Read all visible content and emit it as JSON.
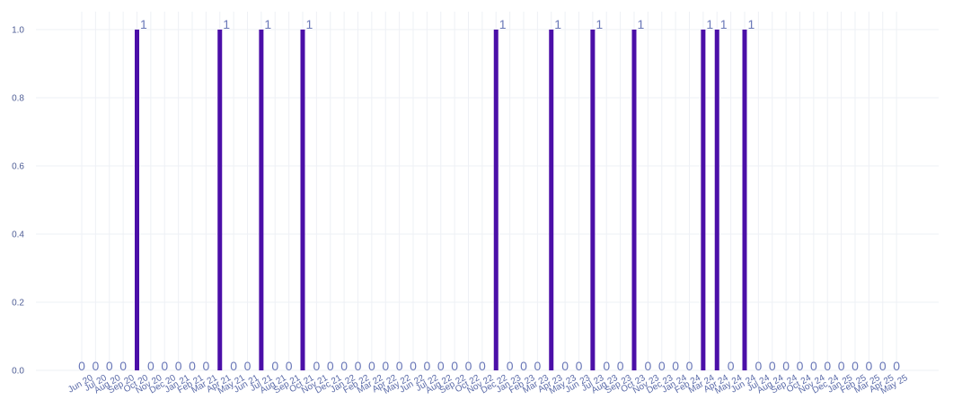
{
  "chart_data": {
    "type": "bar",
    "title": "",
    "xlabel": "",
    "ylabel": "",
    "ylim": [
      0,
      1
    ],
    "yticks": [
      "0.0",
      "0.2",
      "0.4",
      "0.6",
      "0.8",
      "1.0"
    ],
    "grid": true,
    "legend": "none",
    "bar_color": "#4b0fa8",
    "label_color": "#6a78b8",
    "categories": [
      "Jun 20",
      "Jul 20",
      "Aug 20",
      "Sep 20",
      "Oct 20",
      "Nov 20",
      "Dec 20",
      "Jan 21",
      "Feb 21",
      "Mar 21",
      "Apr 21",
      "May 21",
      "Jun 21",
      "Jul 21",
      "Aug 21",
      "Sep 21",
      "Oct 21",
      "Nov 21",
      "Dec 21",
      "Jan 22",
      "Feb 22",
      "Mar 22",
      "Apr 22",
      "May 22",
      "Jun 22",
      "Jul 22",
      "Aug 22",
      "Sep 22",
      "Oct 22",
      "Nov 22",
      "Dec 22",
      "Jan 23",
      "Feb 23",
      "Mar 23",
      "Apr 23",
      "May 23",
      "Jun 23",
      "Jul 23",
      "Aug 23",
      "Sep 23",
      "Oct 23",
      "Nov 23",
      "Dec 23",
      "Jan 24",
      "Feb 24",
      "Mar 24",
      "Apr 24",
      "May 24",
      "Jun 24",
      "Jul 24",
      "Aug 24",
      "Sep 24",
      "Oct 24",
      "Nov 24",
      "Dec 24",
      "Jan 25",
      "Feb 25",
      "Mar 25",
      "Apr 25",
      "May 25"
    ],
    "values": [
      0,
      0,
      0,
      0,
      1,
      0,
      0,
      0,
      0,
      0,
      1,
      0,
      0,
      1,
      0,
      0,
      1,
      0,
      0,
      0,
      0,
      0,
      0,
      0,
      0,
      0,
      0,
      0,
      0,
      0,
      1,
      0,
      0,
      0,
      1,
      0,
      0,
      1,
      0,
      0,
      1,
      0,
      0,
      0,
      0,
      1,
      1,
      0,
      1,
      0,
      0,
      0,
      0,
      0,
      0,
      0,
      0,
      0,
      0,
      0
    ],
    "data_labels": [
      "0",
      "0",
      "0",
      "0",
      "1",
      "0",
      "0",
      "0",
      "0",
      "0",
      "1",
      "0",
      "0",
      "1",
      "0",
      "0",
      "1",
      "0",
      "0",
      "0",
      "0",
      "0",
      "0",
      "0",
      "0",
      "0",
      "0",
      "0",
      "0",
      "0",
      "1",
      "0",
      "0",
      "0",
      "1",
      "0",
      "0",
      "1",
      "0",
      "0",
      "1",
      "0",
      "0",
      "0",
      "0",
      "1",
      "1",
      "0",
      "1",
      "0",
      "0",
      "0",
      "0",
      "0",
      "0",
      "0",
      "0",
      "0",
      "0",
      "0"
    ]
  }
}
